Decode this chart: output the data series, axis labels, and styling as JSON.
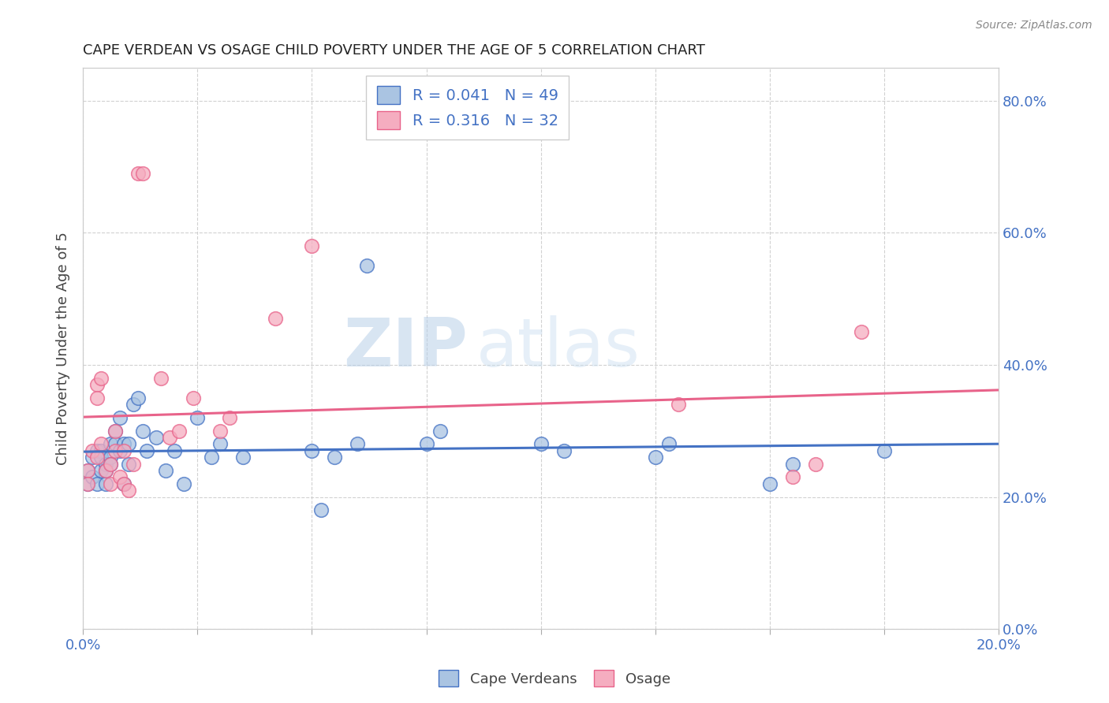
{
  "title": "CAPE VERDEAN VS OSAGE CHILD POVERTY UNDER THE AGE OF 5 CORRELATION CHART",
  "source": "Source: ZipAtlas.com",
  "ylabel": "Child Poverty Under the Age of 5",
  "xlim": [
    0.0,
    0.2
  ],
  "ylim": [
    0.0,
    0.85
  ],
  "xticks": [
    0.0,
    0.025,
    0.05,
    0.075,
    0.1,
    0.125,
    0.15,
    0.175,
    0.2
  ],
  "yticks_right": [
    0.0,
    0.2,
    0.4,
    0.6,
    0.8
  ],
  "cape_verdean_R": 0.041,
  "cape_verdean_N": 49,
  "osage_R": 0.316,
  "osage_N": 32,
  "cape_verdean_color": "#aac4e2",
  "osage_color": "#f5adc0",
  "trend_blue": "#4472c4",
  "trend_pink": "#e8638a",
  "legend_text_color": "#4472c4",
  "watermark_zip": "ZIP",
  "watermark_atlas": "atlas",
  "background_color": "#ffffff",
  "cape_verdean_x": [
    0.001,
    0.001,
    0.002,
    0.002,
    0.003,
    0.003,
    0.004,
    0.004,
    0.004,
    0.005,
    0.005,
    0.005,
    0.006,
    0.006,
    0.006,
    0.007,
    0.007,
    0.008,
    0.008,
    0.009,
    0.009,
    0.01,
    0.01,
    0.011,
    0.012,
    0.013,
    0.014,
    0.016,
    0.018,
    0.02,
    0.022,
    0.025,
    0.028,
    0.03,
    0.035,
    0.05,
    0.052,
    0.055,
    0.06,
    0.062,
    0.075,
    0.078,
    0.1,
    0.105,
    0.125,
    0.128,
    0.15,
    0.155,
    0.175
  ],
  "cape_verdean_y": [
    0.24,
    0.22,
    0.26,
    0.23,
    0.27,
    0.22,
    0.27,
    0.24,
    0.26,
    0.22,
    0.25,
    0.24,
    0.26,
    0.28,
    0.25,
    0.3,
    0.28,
    0.32,
    0.27,
    0.28,
    0.22,
    0.25,
    0.28,
    0.34,
    0.35,
    0.3,
    0.27,
    0.29,
    0.24,
    0.27,
    0.22,
    0.32,
    0.26,
    0.28,
    0.26,
    0.27,
    0.18,
    0.26,
    0.28,
    0.55,
    0.28,
    0.3,
    0.28,
    0.27,
    0.26,
    0.28,
    0.22,
    0.25,
    0.27
  ],
  "osage_x": [
    0.001,
    0.001,
    0.002,
    0.003,
    0.003,
    0.003,
    0.004,
    0.004,
    0.005,
    0.006,
    0.006,
    0.007,
    0.007,
    0.008,
    0.009,
    0.009,
    0.01,
    0.011,
    0.012,
    0.013,
    0.017,
    0.019,
    0.021,
    0.024,
    0.03,
    0.032,
    0.042,
    0.05,
    0.13,
    0.155,
    0.16,
    0.17
  ],
  "osage_y": [
    0.24,
    0.22,
    0.27,
    0.37,
    0.35,
    0.26,
    0.28,
    0.38,
    0.24,
    0.22,
    0.25,
    0.3,
    0.27,
    0.23,
    0.22,
    0.27,
    0.21,
    0.25,
    0.69,
    0.69,
    0.38,
    0.29,
    0.3,
    0.35,
    0.3,
    0.32,
    0.47,
    0.58,
    0.34,
    0.23,
    0.25,
    0.45
  ]
}
